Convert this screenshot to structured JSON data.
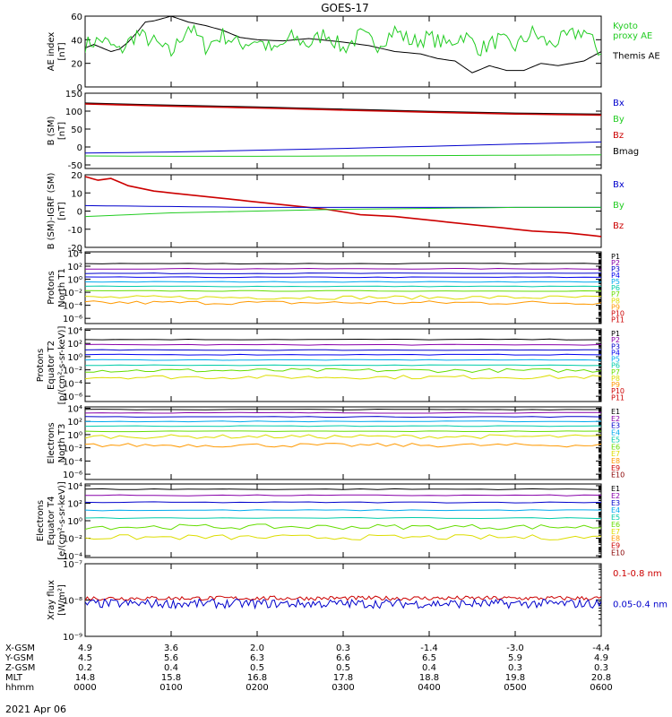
{
  "title": "GOES-17",
  "date": "2021 Apr 06",
  "colors": {
    "black": "#000000",
    "red": "#cc0000",
    "green": "#22cc22",
    "blue": "#0000cc",
    "darkred": "#880000",
    "purple": "#8800aa",
    "navy": "#0000aa",
    "cyan": "#00aaee",
    "teal": "#00ccaa",
    "lime": "#66dd00",
    "yellow": "#dddd00",
    "orange": "#ff9900"
  },
  "chart_data": [
    {
      "type": "line",
      "panel": "ae",
      "ylabel": [
        "AE index",
        "[nT]"
      ],
      "ylim": [
        0,
        60
      ],
      "yticks": [
        "0",
        "20",
        "40",
        "60"
      ],
      "legend": [
        {
          "lines": [
            "Kyoto",
            "proxy AE"
          ],
          "color": "#22cc22"
        },
        {
          "lines": [
            "Themis AE"
          ],
          "color": "#000000"
        }
      ],
      "series": [
        {
          "name": "Themis AE",
          "color": "#000000",
          "x": [
            0,
            0.1,
            0.3,
            0.4,
            0.5,
            0.6,
            0.7,
            0.8,
            0.9,
            1.0,
            1.2,
            1.4,
            1.6,
            1.8,
            2.0,
            2.3,
            2.6,
            3.0,
            3.3,
            3.6,
            3.9,
            4.1,
            4.3,
            4.5,
            4.7,
            4.9,
            5.1,
            5.3,
            5.5,
            5.8,
            6.0
          ],
          "y": [
            33,
            36,
            30,
            32,
            38,
            46,
            55,
            56,
            58,
            60,
            55,
            52,
            48,
            42,
            40,
            39,
            41,
            38,
            35,
            30,
            28,
            24,
            22,
            12,
            18,
            14,
            14,
            20,
            18,
            22,
            30
          ]
        },
        {
          "name": "Kyoto proxy AE",
          "color": "#22cc22",
          "x": [
            0,
            0.2,
            0.4,
            0.6,
            0.8,
            1.0,
            1.2,
            1.4,
            1.6,
            1.8,
            2.0,
            2.2,
            2.4,
            2.6,
            2.8,
            3.0,
            3.2,
            3.4,
            3.6,
            3.8,
            4.0,
            4.2,
            4.4,
            4.6,
            4.8,
            5.0,
            5.2,
            5.4,
            5.6,
            5.8,
            6.0
          ],
          "y": [
            36,
            40,
            30,
            45,
            38,
            28,
            52,
            34,
            44,
            36,
            40,
            30,
            42,
            36,
            46,
            32,
            44,
            36,
            48,
            38,
            42,
            36,
            44,
            32,
            40,
            34,
            46,
            36,
            42,
            48,
            28
          ]
        }
      ]
    },
    {
      "type": "line",
      "panel": "bsm",
      "ylabel": [
        "B (SM)",
        "[nT]"
      ],
      "ylim": [
        -60,
        150
      ],
      "yticks": [
        "-50",
        "0",
        "50",
        "100",
        "150"
      ],
      "legend": [
        {
          "lines": [
            "Bx"
          ],
          "color": "#0000cc"
        },
        {
          "lines": [
            "By"
          ],
          "color": "#22cc22"
        },
        {
          "lines": [
            "Bz"
          ],
          "color": "#cc0000"
        },
        {
          "lines": [
            "Bmag"
          ],
          "color": "#000000"
        }
      ],
      "series": [
        {
          "name": "Bmag",
          "color": "#000000",
          "x": [
            0,
            1,
            2,
            3,
            4,
            5,
            6
          ],
          "y": [
            122,
            116,
            111,
            105,
            99,
            94,
            91
          ]
        },
        {
          "name": "Bz",
          "color": "#cc0000",
          "x": [
            0,
            1,
            2,
            3,
            4,
            5,
            6
          ],
          "y": [
            120,
            114,
            109,
            103,
            97,
            92,
            89
          ]
        },
        {
          "name": "Bx",
          "color": "#0000cc",
          "x": [
            0,
            1,
            2,
            3,
            4,
            5,
            6
          ],
          "y": [
            -17,
            -14,
            -9,
            -4,
            2,
            8,
            14
          ]
        },
        {
          "name": "By",
          "color": "#22cc22",
          "x": [
            0,
            1,
            2,
            3,
            4,
            5,
            6
          ],
          "y": [
            -25,
            -26,
            -26,
            -25,
            -24,
            -23,
            -22
          ]
        }
      ]
    },
    {
      "type": "line",
      "panel": "bigrf",
      "ylabel": [
        "B (SM)-IGRF (SM)",
        "[nT]"
      ],
      "ylim": [
        -20,
        20
      ],
      "yticks": [
        "-20",
        "-10",
        "0",
        "10",
        "20"
      ],
      "legend": [
        {
          "lines": [
            "Bx"
          ],
          "color": "#0000cc"
        },
        {
          "lines": [
            "By"
          ],
          "color": "#22cc22"
        },
        {
          "lines": [
            "Bz"
          ],
          "color": "#cc0000"
        }
      ],
      "series": [
        {
          "name": "Bz",
          "color": "#cc0000",
          "x": [
            0,
            0.15,
            0.3,
            0.5,
            0.8,
            1.2,
            1.6,
            2.0,
            2.4,
            2.8,
            3.2,
            3.6,
            4.0,
            4.4,
            4.8,
            5.2,
            5.6,
            6.0
          ],
          "y": [
            19,
            17,
            18,
            14,
            11,
            9,
            7,
            5,
            3,
            1,
            -2,
            -3,
            -5,
            -7,
            -9,
            -11,
            -12,
            -14
          ]
        },
        {
          "name": "Bx",
          "color": "#0000cc",
          "x": [
            0,
            1,
            2,
            3,
            4,
            5,
            6
          ],
          "y": [
            3,
            2.5,
            2,
            2,
            2,
            2,
            2
          ]
        },
        {
          "name": "By",
          "color": "#22cc22",
          "x": [
            0,
            1,
            2,
            3,
            4,
            5,
            6
          ],
          "y": [
            -3,
            -1,
            0,
            1,
            1.5,
            2,
            2
          ]
        }
      ]
    },
    {
      "type": "line",
      "panel": "pn",
      "log": true,
      "ylabel": [
        "Protons",
        "North T1"
      ],
      "ylim_log10": [
        -6.8,
        4.2
      ],
      "yticks": [
        {
          "e": 4,
          "label": "10⁴"
        },
        {
          "e": 2,
          "label": "10²"
        },
        {
          "e": 0,
          "label": "10⁰"
        },
        {
          "e": -2,
          "label": "10⁻²"
        },
        {
          "e": -4,
          "label": "10⁻⁴"
        },
        {
          "e": -6,
          "label": "10⁻⁶"
        }
      ],
      "legend": [
        "P1",
        "P2",
        "P3",
        "P4",
        "P5",
        "P6",
        "P7",
        "P8",
        "P9",
        "P10",
        "P11"
      ],
      "legend_colors": [
        "#000000",
        "#8800aa",
        "#0000cc",
        "#0000ee",
        "#00aaee",
        "#00ccaa",
        "#66dd00",
        "#dddd00",
        "#ff9900",
        "#cc0000",
        "#cc0000"
      ],
      "series_levels_log10": [
        2.4,
        1.6,
        0.9,
        0.3,
        -0.4,
        -1.1,
        -1.8,
        -2.8,
        -3.6
      ]
    },
    {
      "type": "line",
      "panel": "pe",
      "log": true,
      "ylabel": [
        "Protons",
        "Equator T2",
        "[p/(cm²-s-sr-keV)]"
      ],
      "ylim_log10": [
        -6.8,
        4.2
      ],
      "yticks": [
        {
          "e": 4,
          "label": "10⁴"
        },
        {
          "e": 2,
          "label": "10²"
        },
        {
          "e": 0,
          "label": "10⁰"
        },
        {
          "e": -2,
          "label": "10⁻²"
        },
        {
          "e": -4,
          "label": "10⁻⁴"
        },
        {
          "e": -6,
          "label": "10⁻⁶"
        }
      ],
      "legend": [
        "P1",
        "P2",
        "P3",
        "P4",
        "P5",
        "P6",
        "P7",
        "P8",
        "P9",
        "P10",
        "P11"
      ],
      "legend_colors": [
        "#000000",
        "#8800aa",
        "#0000cc",
        "#0000ee",
        "#00aaee",
        "#00ccaa",
        "#66dd00",
        "#dddd00",
        "#ff9900",
        "#cc0000",
        "#cc0000"
      ],
      "series_levels_log10": [
        2.6,
        1.8,
        1.0,
        0.3,
        -0.5,
        -1.3,
        -2.1,
        -3.1
      ]
    },
    {
      "type": "line",
      "panel": "en",
      "log": true,
      "ylabel": [
        "Electrons",
        "North T3"
      ],
      "ylim_log10": [
        -6.8,
        4.2
      ],
      "yticks": [
        {
          "e": 4,
          "label": "10⁴"
        },
        {
          "e": 2,
          "label": "10²"
        },
        {
          "e": 0,
          "label": "10⁰"
        },
        {
          "e": -2,
          "label": "10⁻²"
        },
        {
          "e": -4,
          "label": "10⁻⁴"
        },
        {
          "e": -6,
          "label": "10⁻⁶"
        }
      ],
      "legend": [
        "E1",
        "E2",
        "E3",
        "E4",
        "E5",
        "E6",
        "E7",
        "E8",
        "E9",
        "E10"
      ],
      "legend_colors": [
        "#000000",
        "#8800aa",
        "#0000cc",
        "#00aaee",
        "#00ccaa",
        "#66dd00",
        "#dddd00",
        "#ff9900",
        "#cc0000",
        "#880000"
      ],
      "series_levels_log10": [
        3.8,
        3.3,
        2.7,
        2.0,
        1.3,
        0.5,
        -0.3,
        -1.6
      ]
    },
    {
      "type": "line",
      "panel": "ee",
      "log": true,
      "ylabel": [
        "Electrons",
        "Equator T4",
        "[e/(cm²-s-sr-keV)]"
      ],
      "ylim_log10": [
        -4.2,
        4.2
      ],
      "yticks": [
        {
          "e": 4,
          "label": "10⁴"
        },
        {
          "e": 2,
          "label": "10²"
        },
        {
          "e": 0,
          "label": "10⁰"
        },
        {
          "e": -2,
          "label": "10⁻²"
        },
        {
          "e": -4,
          "label": "10⁻⁴"
        }
      ],
      "legend": [
        "E1",
        "E2",
        "E3",
        "E4",
        "E5",
        "E6",
        "E7",
        "E8",
        "E9",
        "E10"
      ],
      "legend_colors": [
        "#000000",
        "#8800aa",
        "#0000cc",
        "#00aaee",
        "#00ccaa",
        "#66dd00",
        "#dddd00",
        "#ff9900",
        "#cc0000",
        "#880000"
      ],
      "series_levels_log10": [
        3.6,
        2.9,
        2.1,
        1.2,
        0.3,
        -0.7,
        -1.9
      ]
    },
    {
      "type": "line",
      "panel": "xray",
      "log": true,
      "ylabel": [
        "Xray flux",
        "[W/m²]"
      ],
      "ylim_log10": [
        -9,
        -7
      ],
      "yticks": [
        {
          "e": -7,
          "label": "10⁻⁷"
        },
        {
          "e": -8,
          "label": "10⁻⁸"
        },
        {
          "e": -9,
          "label": "10⁻⁹"
        }
      ],
      "legend": [
        {
          "lines": [
            "0.1-0.8 nm"
          ],
          "color": "#cc0000"
        },
        {
          "lines": [
            "0.05-0.4 nm"
          ],
          "color": "#0000cc"
        }
      ],
      "series": [
        {
          "name": "0.1-0.8 nm",
          "color": "#cc0000",
          "level_log10": -7.95
        },
        {
          "name": "0.05-0.4 nm",
          "color": "#0000cc",
          "level_log10": -8.1
        }
      ]
    }
  ],
  "footer": {
    "rows": [
      {
        "label": "X-GSM",
        "values": [
          "4.9",
          "3.6",
          "2.0",
          "0.3",
          "-1.4",
          "-3.0",
          "-4.4"
        ]
      },
      {
        "label": "Y-GSM",
        "values": [
          "4.5",
          "5.6",
          "6.3",
          "6.6",
          "6.5",
          "5.9",
          "4.9"
        ]
      },
      {
        "label": "Z-GSM",
        "values": [
          "0.2",
          "0.4",
          "0.5",
          "0.5",
          "0.4",
          "0.3",
          "0.3"
        ]
      },
      {
        "label": "MLT",
        "values": [
          "14.8",
          "15.8",
          "16.8",
          "17.8",
          "18.8",
          "19.8",
          "20.8"
        ]
      },
      {
        "label": "hhmm",
        "values": [
          "0000",
          "0100",
          "0200",
          "0300",
          "0400",
          "0500",
          "0600"
        ]
      }
    ]
  }
}
